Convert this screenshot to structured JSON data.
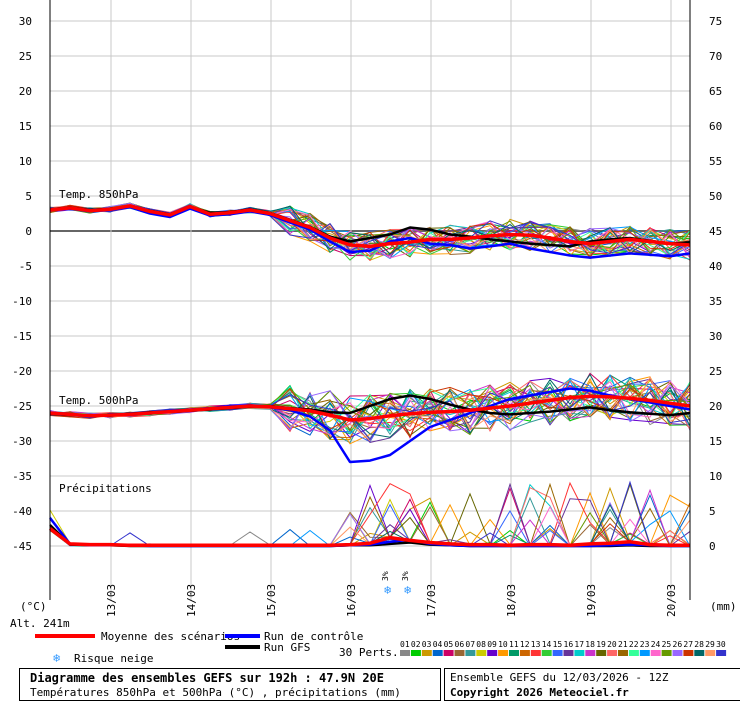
{
  "chart_data": {
    "type": "line",
    "title": "Diagramme des ensembles GEFS sur 192h : 47.9N 20E",
    "subtitle": "Températures 850hPa et 500hPa (°C) , précipitations (mm)",
    "left_axis": {
      "unit": "(°C)",
      "ticks": [
        30,
        25,
        20,
        15,
        10,
        5,
        0,
        -5,
        -10,
        -15,
        -20,
        -25,
        -30,
        -35,
        -40,
        -45
      ],
      "range": [
        -50,
        33
      ]
    },
    "right_axis": {
      "unit": "(mm)",
      "ticks": [
        75,
        70,
        65,
        60,
        55,
        50,
        45,
        40,
        35,
        30,
        25,
        20,
        15,
        10,
        5,
        0
      ]
    },
    "altitude": "Alt. 241m",
    "x_dates": [
      "13/03",
      "14/03",
      "15/03",
      "16/03",
      "17/03",
      "18/03",
      "19/03",
      "20/03"
    ],
    "x_range_hours": [
      0,
      192
    ],
    "annotations": {
      "t850": "Temp. 850hPa",
      "t500": "Temp. 500hPa",
      "precip": "Précipitations"
    },
    "snow_risk": [
      {
        "hour": 102,
        "label": "3%"
      },
      {
        "hour": 108,
        "label": "3%"
      }
    ],
    "series": [
      {
        "name": "Moyenne des scénarios",
        "color": "#ff0000",
        "panel": "t850",
        "hours": [
          0,
          6,
          12,
          18,
          24,
          30,
          36,
          42,
          48,
          54,
          60,
          66,
          72,
          78,
          84,
          90,
          96,
          102,
          108,
          114,
          120,
          126,
          132,
          138,
          144,
          150,
          156,
          162,
          168,
          174,
          180,
          186,
          192
        ],
        "values": [
          3.0,
          3.3,
          2.9,
          3.1,
          3.6,
          2.8,
          2.3,
          3.5,
          2.4,
          2.6,
          3.0,
          2.5,
          1.5,
          0.5,
          -1.0,
          -2.0,
          -2.2,
          -1.8,
          -1.6,
          -1.2,
          -1.2,
          -1.0,
          -0.7,
          -0.5,
          -0.6,
          -1.0,
          -1.5,
          -1.8,
          -1.5,
          -1.2,
          -1.5,
          -1.8,
          -2.0
        ]
      },
      {
        "name": "Run de contrôle",
        "color": "#0000ff",
        "panel": "t850",
        "hours": [
          0,
          6,
          12,
          18,
          24,
          30,
          36,
          42,
          48,
          54,
          60,
          66,
          72,
          78,
          84,
          90,
          96,
          102,
          108,
          114,
          120,
          126,
          132,
          138,
          144,
          150,
          156,
          162,
          168,
          174,
          180,
          186,
          192
        ],
        "values": [
          3.0,
          3.2,
          2.8,
          3.0,
          3.4,
          2.5,
          2.0,
          3.2,
          2.2,
          2.4,
          2.8,
          2.3,
          1.2,
          0.2,
          -1.5,
          -3.0,
          -2.8,
          -1.5,
          -1.0,
          -1.8,
          -2.0,
          -2.5,
          -2.2,
          -1.8,
          -2.5,
          -3.0,
          -3.5,
          -3.8,
          -3.5,
          -3.2,
          -3.4,
          -3.6,
          -3.2
        ]
      },
      {
        "name": "Run GFS",
        "color": "#000000",
        "panel": "t850",
        "hours": [
          0,
          6,
          12,
          18,
          24,
          30,
          36,
          42,
          48,
          54,
          60,
          66,
          72,
          78,
          84,
          90,
          96,
          102,
          108,
          114,
          120,
          126,
          132,
          138,
          144,
          150,
          156,
          162,
          168,
          174,
          180,
          186,
          192
        ],
        "values": [
          3.1,
          3.4,
          3.0,
          3.2,
          3.5,
          2.9,
          2.4,
          3.4,
          2.6,
          2.7,
          3.1,
          2.6,
          1.6,
          0.6,
          -0.8,
          -1.5,
          -1.0,
          -0.5,
          0.5,
          0.2,
          -0.5,
          -0.8,
          -1.2,
          -1.5,
          -1.8,
          -2.0,
          -2.2,
          -1.5,
          -1.2,
          -1.0,
          -1.4,
          -1.8,
          -1.6
        ]
      },
      {
        "name": "Moyenne des scénarios",
        "color": "#ff0000",
        "panel": "t500",
        "hours": [
          0,
          6,
          12,
          18,
          24,
          30,
          36,
          42,
          48,
          54,
          60,
          66,
          72,
          78,
          84,
          90,
          96,
          102,
          108,
          114,
          120,
          126,
          132,
          138,
          144,
          150,
          156,
          162,
          168,
          174,
          180,
          186,
          192
        ],
        "values": [
          -26.0,
          -26.2,
          -26.4,
          -26.3,
          -26.2,
          -26.0,
          -25.8,
          -25.6,
          -25.4,
          -25.2,
          -25.0,
          -25.1,
          -25.4,
          -25.7,
          -26.3,
          -27.0,
          -26.8,
          -26.4,
          -26.1,
          -25.9,
          -25.8,
          -25.6,
          -25.3,
          -25.0,
          -24.6,
          -24.2,
          -23.8,
          -23.6,
          -23.7,
          -23.9,
          -24.2,
          -24.6,
          -25.0
        ]
      },
      {
        "name": "Run de contrôle",
        "color": "#0000ff",
        "panel": "t500",
        "hours": [
          0,
          6,
          12,
          18,
          24,
          30,
          36,
          42,
          48,
          54,
          60,
          66,
          72,
          78,
          84,
          90,
          96,
          102,
          108,
          114,
          120,
          126,
          132,
          138,
          144,
          150,
          156,
          162,
          168,
          174,
          180,
          186,
          192
        ],
        "values": [
          -26.0,
          -26.1,
          -26.5,
          -26.2,
          -26.3,
          -26.0,
          -25.7,
          -25.5,
          -25.3,
          -25.0,
          -24.9,
          -25.2,
          -25.6,
          -26.5,
          -28.5,
          -33.0,
          -32.8,
          -32.0,
          -30.0,
          -28.0,
          -27.0,
          -26.0,
          -25.0,
          -24.0,
          -23.5,
          -23.0,
          -22.5,
          -22.8,
          -23.5,
          -24.0,
          -24.5,
          -25.0,
          -25.5
        ]
      },
      {
        "name": "Run GFS",
        "color": "#000000",
        "panel": "t500",
        "hours": [
          0,
          6,
          12,
          18,
          24,
          30,
          36,
          42,
          48,
          54,
          60,
          66,
          72,
          78,
          84,
          90,
          96,
          102,
          108,
          114,
          120,
          126,
          132,
          138,
          144,
          150,
          156,
          162,
          168,
          174,
          180,
          186,
          192
        ],
        "values": [
          -26.1,
          -26.3,
          -26.3,
          -26.4,
          -26.1,
          -25.9,
          -25.9,
          -25.7,
          -25.5,
          -25.3,
          -25.1,
          -25.0,
          -25.3,
          -25.5,
          -25.9,
          -26.0,
          -25.0,
          -24.0,
          -23.5,
          -24.0,
          -24.8,
          -25.5,
          -26.0,
          -26.2,
          -26.0,
          -25.8,
          -25.5,
          -25.2,
          -25.6,
          -25.9,
          -26.1,
          -26.3,
          -26.0
        ]
      },
      {
        "name": "Moyenne des scénarios",
        "color": "#ff0000",
        "panel": "precip",
        "hours": [
          0,
          6,
          12,
          18,
          24,
          30,
          36,
          42,
          48,
          54,
          60,
          66,
          72,
          78,
          84,
          90,
          96,
          102,
          108,
          114,
          120,
          126,
          132,
          138,
          144,
          150,
          156,
          162,
          168,
          174,
          180,
          186,
          192
        ],
        "values": [
          2.5,
          0.3,
          0.2,
          0.2,
          0.1,
          0.1,
          0.1,
          0.1,
          0.1,
          0.1,
          0.1,
          0.1,
          0.1,
          0.1,
          0.1,
          0.2,
          0.4,
          1.2,
          0.8,
          0.5,
          0.3,
          0.2,
          0.2,
          0.1,
          0.2,
          0.2,
          0.1,
          0.3,
          0.4,
          0.6,
          0.2,
          0.1,
          0.1
        ]
      },
      {
        "name": "Run de contrôle",
        "color": "#0000ff",
        "panel": "precip",
        "hours": [
          0,
          6,
          12,
          18,
          24,
          30,
          36,
          42,
          48,
          54,
          60,
          66,
          72,
          78,
          84,
          90,
          96,
          102,
          108,
          114,
          120,
          126,
          132,
          138,
          144,
          150,
          156,
          162,
          168,
          174,
          180,
          186,
          192
        ],
        "values": [
          4.0,
          0.3,
          0.1,
          0.1,
          0.1,
          0.0,
          0.0,
          0.0,
          0.0,
          0.0,
          0.0,
          0.0,
          0.0,
          0.0,
          0.0,
          0.1,
          0.2,
          0.6,
          0.9,
          0.3,
          0.1,
          0.0,
          0.0,
          0.0,
          0.0,
          0.0,
          0.0,
          0.0,
          0.1,
          0.2,
          0.1,
          0.0,
          0.0
        ]
      },
      {
        "name": "Run GFS",
        "color": "#000000",
        "panel": "precip",
        "hours": [
          0,
          6,
          12,
          18,
          24,
          30,
          36,
          42,
          48,
          54,
          60,
          66,
          72,
          78,
          84,
          90,
          96,
          102,
          108,
          114,
          120,
          126,
          132,
          138,
          144,
          150,
          156,
          162,
          168,
          174,
          180,
          186,
          192
        ],
        "values": [
          3.0,
          0.2,
          0.1,
          0.1,
          0.0,
          0.0,
          0.0,
          0.0,
          0.0,
          0.0,
          0.0,
          0.0,
          0.0,
          0.0,
          0.0,
          0.1,
          0.1,
          0.3,
          0.5,
          0.2,
          0.1,
          0.0,
          0.0,
          0.0,
          0.0,
          0.0,
          0.0,
          0.0,
          0.0,
          0.1,
          0.0,
          0.0,
          0.0
        ]
      }
    ],
    "member_colors": [
      "#888888",
      "#00cc00",
      "#cc9900",
      "#0066cc",
      "#cc0066",
      "#996633",
      "#339999",
      "#cccc00",
      "#6600cc",
      "#ff9900",
      "#009966",
      "#cc6600",
      "#ff3333",
      "#33cc33",
      "#3366ff",
      "#663399",
      "#00cccc",
      "#cc33cc",
      "#666600",
      "#ff6666",
      "#996600",
      "#33ff99",
      "#0099ff",
      "#ff66cc",
      "#669900",
      "#9966ff",
      "#cc3300",
      "#006666",
      "#ff9966",
      "#3333cc"
    ]
  },
  "legend": {
    "mean": "Moyenne des scénarios",
    "control": "Run de contrôle",
    "gfs": "Run GFS",
    "snow": "Risque neige",
    "perts": "30 Perts.",
    "pert_numbers": [
      "01",
      "02",
      "03",
      "04",
      "05",
      "06",
      "07",
      "08",
      "09",
      "10",
      "11",
      "12",
      "13",
      "14",
      "15",
      "16",
      "17",
      "18",
      "19",
      "20",
      "21",
      "22",
      "23",
      "24",
      "25",
      "26",
      "27",
      "28",
      "29",
      "30"
    ]
  },
  "footer": {
    "title": "Diagramme des ensembles GEFS sur 192h : 47.9N 20E",
    "subtitle": "Températures 850hPa et 500hPa (°C) , précipitations (mm)",
    "run": "Ensemble GEFS du 12/03/2026 - 12Z",
    "copyright": "Copyright 2026 Meteociel.fr"
  }
}
